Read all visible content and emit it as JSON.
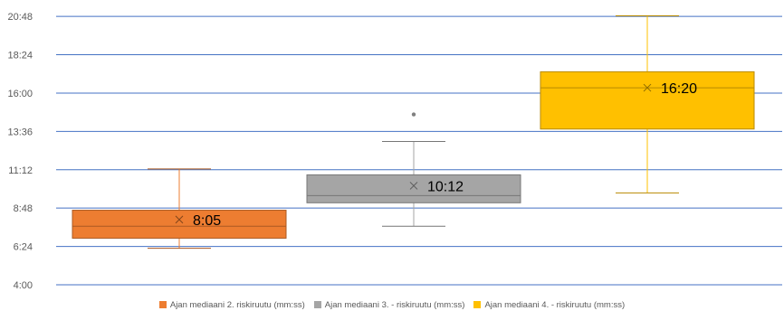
{
  "chart_data": {
    "type": "box",
    "title": "",
    "xlabel": "",
    "ylabel": "",
    "ylim": [
      "4:00",
      "21:36"
    ],
    "yticks": [
      "4:00",
      "6:24",
      "8:48",
      "11:12",
      "13:36",
      "16:00",
      "18:24",
      "20:48"
    ],
    "grid": true,
    "legend_position": "bottom",
    "series": [
      {
        "name": "Ajan mediaani 2. riskiruutu (mm:ss)",
        "color": "#ED7D31",
        "min": "6:17",
        "q1": "6:55",
        "median": "7:40",
        "q3": "8:40",
        "max": "11:15",
        "mean": "8:05",
        "outliers": [],
        "label": "8:05"
      },
      {
        "name": "Ajan mediaani 3. - riskiruutu (mm:ss)",
        "color": "#A5A5A5",
        "min": "7:40",
        "q1": "9:08",
        "median": "9:35",
        "q3": "10:53",
        "max": "12:58",
        "mean": "10:12",
        "outliers": [
          "14:40"
        ],
        "label": "10:12"
      },
      {
        "name": "Ajan mediaani 4. - riskiruutu (mm:ss)",
        "color": "#FFC000",
        "min": "9:45",
        "q1": "13:45",
        "median": "16:20",
        "q3": "17:20",
        "max": "20:50",
        "mean": "16:20",
        "outliers": [],
        "label": "16:20"
      }
    ]
  }
}
